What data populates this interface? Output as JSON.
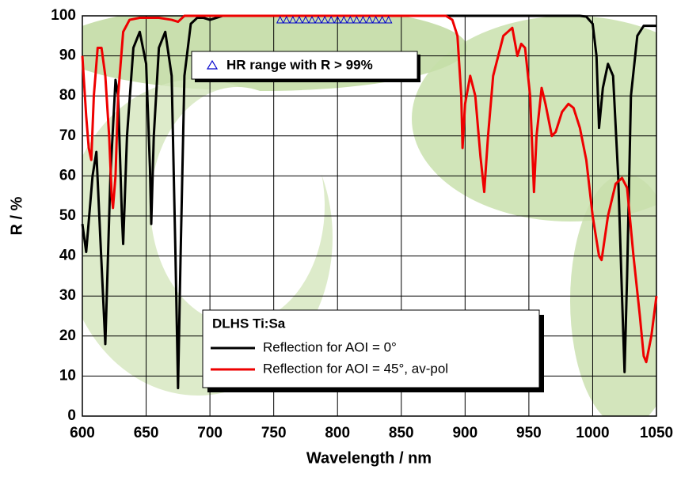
{
  "chart_data": {
    "type": "line",
    "xlabel": "Wavelength / nm",
    "ylabel": "R / %",
    "legend_title": "DLHS Ti:Sa",
    "xlim": [
      600,
      1050
    ],
    "xticks": [
      600,
      650,
      700,
      750,
      800,
      850,
      900,
      950,
      1000,
      1050
    ],
    "ylim": [
      0,
      100
    ],
    "yticks": [
      0,
      10,
      20,
      30,
      40,
      50,
      60,
      70,
      80,
      90,
      100
    ],
    "grid": true,
    "series": [
      {
        "name": "HR range with R > 99%",
        "type": "scatter",
        "marker": "triangle",
        "color": "#0000cc",
        "x": [
          755,
          760,
          765,
          770,
          775,
          780,
          785,
          790,
          795,
          800,
          805,
          810,
          815,
          820,
          825,
          830,
          835,
          840
        ],
        "values": [
          99,
          99,
          99,
          99,
          99,
          99,
          99,
          99,
          99,
          99,
          99,
          99,
          99,
          99,
          99,
          99,
          99,
          99
        ]
      },
      {
        "name": "Reflection for AOI = 0°",
        "color": "#000000",
        "x": [
          600,
          603,
          608,
          611,
          614,
          618,
          622,
          626,
          628,
          631,
          632,
          635,
          640,
          645,
          650,
          653,
          654,
          656,
          660,
          665,
          670,
          673,
          675,
          677,
          680,
          685,
          690,
          695,
          700,
          705,
          710,
          990,
          995,
          1000,
          1003,
          1005,
          1008,
          1012,
          1016,
          1020,
          1023,
          1025,
          1027,
          1030,
          1035,
          1040,
          1050
        ],
        "values": [
          48,
          41,
          60,
          66,
          45,
          18,
          60,
          84,
          80,
          50,
          43,
          70,
          92,
          96,
          88,
          62,
          48,
          70,
          92,
          96,
          85,
          40,
          7,
          40,
          85,
          98,
          99.5,
          99.5,
          99,
          99.5,
          100,
          100,
          99.8,
          98,
          90,
          72,
          82,
          88,
          85,
          60,
          30,
          11,
          35,
          80,
          95,
          97.5,
          97.5
        ]
      },
      {
        "name": "Reflection for AOI = 45°, av-pol",
        "color": "#ee0000",
        "x": [
          600,
          603,
          605,
          607,
          609,
          612,
          615,
          618,
          621,
          623,
          624,
          626,
          628,
          632,
          637,
          645,
          652,
          660,
          670,
          675,
          680,
          700,
          885,
          890,
          894,
          897,
          898,
          900,
          904,
          908,
          912,
          915,
          918,
          922,
          930,
          937,
          941,
          944,
          947,
          951,
          954,
          956,
          960,
          963,
          968,
          971,
          976,
          981,
          985,
          990,
          995,
          1000,
          1005,
          1007,
          1012,
          1018,
          1023,
          1027,
          1032,
          1037,
          1040,
          1042,
          1046,
          1050
        ],
        "values": [
          90,
          75,
          67,
          64,
          80,
          92,
          92,
          85,
          70,
          55,
          52,
          60,
          80,
          96,
          99,
          99.5,
          99.5,
          99.5,
          99,
          98.5,
          100,
          100,
          100,
          99,
          95,
          80,
          67,
          78,
          85,
          80,
          65,
          56,
          70,
          85,
          95,
          97,
          90,
          93,
          92,
          80,
          56,
          70,
          82,
          78,
          70,
          71,
          76,
          78,
          77,
          72,
          64,
          50,
          40,
          39,
          50,
          58,
          59.5,
          57,
          40,
          25,
          15,
          13.5,
          20,
          30
        ]
      }
    ]
  }
}
